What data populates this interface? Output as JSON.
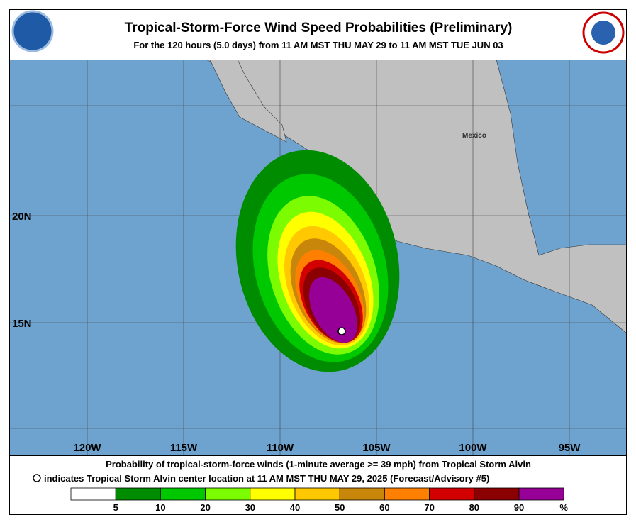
{
  "header": {
    "title": "Tropical-Storm-Force Wind Speed Probabilities (Preliminary)",
    "subtitle": "For the 120 hours (5.0 days) from 11 AM MST THU MAY 29 to 11 AM MST TUE JUN 03"
  },
  "map": {
    "longitude_labels": [
      "120W",
      "115W",
      "110W",
      "105W",
      "100W",
      "95W"
    ],
    "latitude_labels": [
      "20N",
      "15N"
    ],
    "place_label": "Mexico"
  },
  "footer": {
    "line1": "Probability of tropical-storm-force winds (1-minute average >= 39 mph) from Tropical Storm Alvin",
    "line2": "indicates Tropical Storm Alvin center location at 11 AM MST THU MAY 29, 2025 (Forecast/Advisory #5)"
  },
  "legend": {
    "labels": [
      "5",
      "10",
      "20",
      "30",
      "40",
      "50",
      "60",
      "70",
      "80",
      "90"
    ],
    "unit": "%",
    "colors": [
      "#ffffff",
      "#008c00",
      "#00c800",
      "#7cfc00",
      "#ffff00",
      "#ffc800",
      "#c8870a",
      "#ff8000",
      "#d20000",
      "#8b0000",
      "#960096"
    ]
  }
}
